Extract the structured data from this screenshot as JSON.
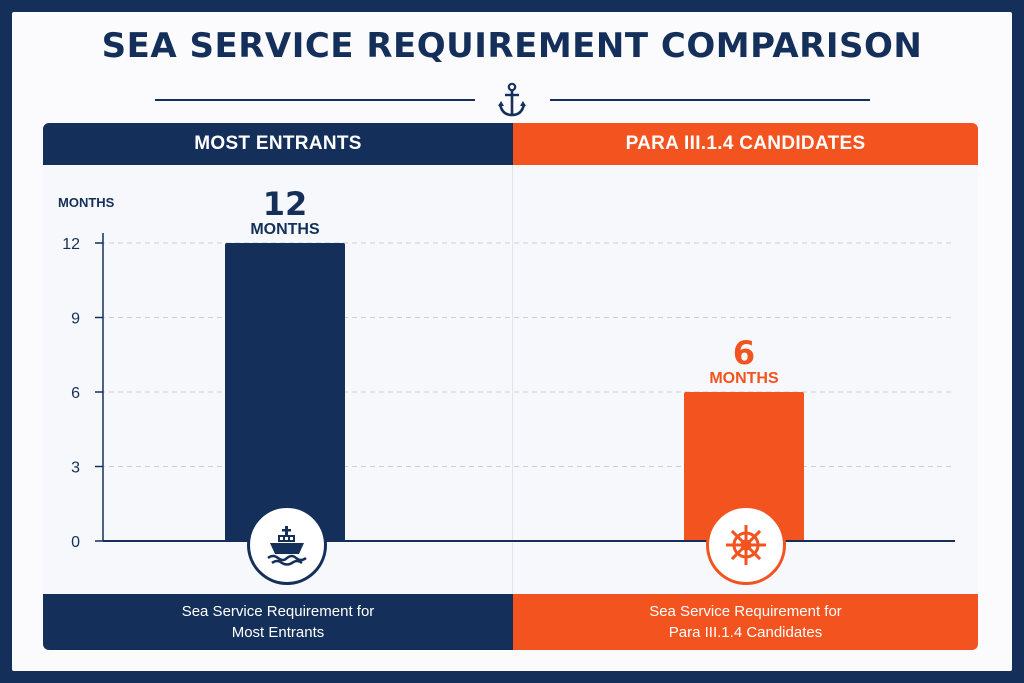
{
  "title": "SEA SERVICE REQUIREMENT COMPARISON",
  "left_header": "MOST ENTRANTS",
  "right_header": "PARA III.1.4 CANDIDATES",
  "left_footer": [
    "Sea Service Requirement for",
    "Most Entrants"
  ],
  "right_footer": [
    "Sea Service Requirement for",
    "Para III.1.4 Candidates"
  ],
  "icons": {
    "title_icon": "anchor-icon",
    "left_icon": "ship-icon",
    "right_icon": "ship-wheel-icon"
  },
  "colors": {
    "navy": "#14305a",
    "orange": "#f2531f"
  },
  "chart_data": {
    "type": "bar",
    "ylabel": "MONTHS",
    "ylim": [
      0,
      12
    ],
    "yticks": [
      "0",
      "3",
      "6",
      "9",
      "12"
    ],
    "categories": [
      "Most Entrants",
      "Para III.1.4 Candidates"
    ],
    "values": [
      12,
      6
    ],
    "data_labels": [
      {
        "value": "12",
        "unit": "MONTHS"
      },
      {
        "value": "6",
        "unit": "MONTHS"
      }
    ],
    "grid": true
  }
}
